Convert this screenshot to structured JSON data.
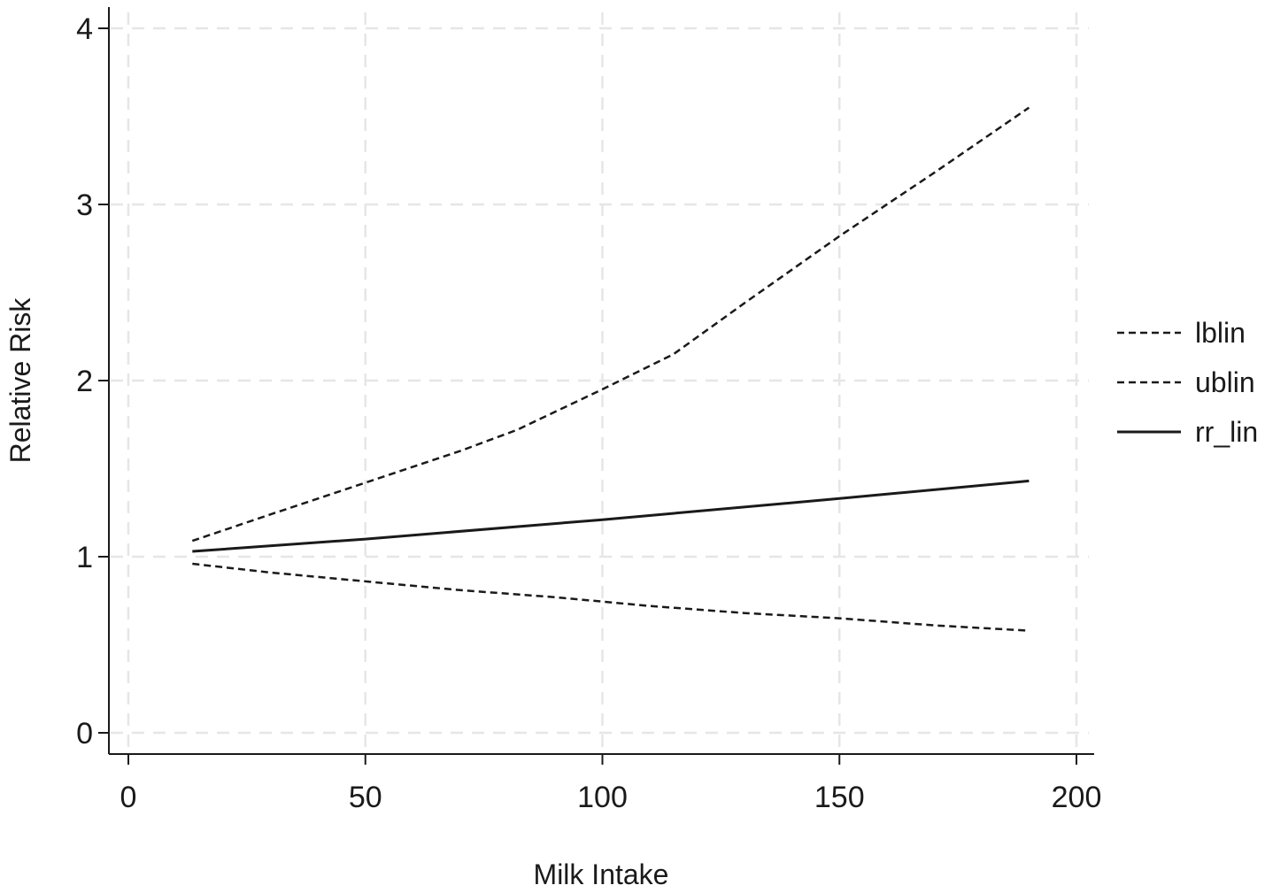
{
  "chart_data": {
    "type": "line",
    "title": "",
    "xlabel": "Milk Intake",
    "ylabel": "Relative Risk",
    "xlim": [
      0,
      200
    ],
    "ylim": [
      0,
      4
    ],
    "x_ticks": [
      0,
      50,
      100,
      150,
      200
    ],
    "y_ticks": [
      0,
      1,
      2,
      3,
      4
    ],
    "x_tick_labels": [
      "0",
      "50",
      "100",
      "150",
      "200"
    ],
    "y_tick_labels": [
      "0",
      "1",
      "2",
      "3",
      "4"
    ],
    "grid": true,
    "legend_position": "right",
    "series": [
      {
        "name": "lblin",
        "style": "dashed",
        "color": "#1a1a1a",
        "x": [
          13.5,
          30,
          50,
          70,
          90,
          110,
          130,
          150,
          170,
          190
        ],
        "y": [
          0.96,
          0.91,
          0.86,
          0.81,
          0.77,
          0.72,
          0.68,
          0.65,
          0.61,
          0.58
        ]
      },
      {
        "name": "ublin",
        "style": "dashed",
        "color": "#1a1a1a",
        "x": [
          13.5,
          30,
          50,
          70,
          82,
          100,
          115,
          130,
          150,
          170,
          190
        ],
        "y": [
          1.09,
          1.24,
          1.42,
          1.6,
          1.72,
          1.95,
          2.15,
          2.44,
          2.82,
          3.18,
          3.55
        ]
      },
      {
        "name": "rr_lin",
        "style": "solid",
        "color": "#1a1a1a",
        "x": [
          13.5,
          50,
          100,
          150,
          190
        ],
        "y": [
          1.03,
          1.1,
          1.21,
          1.33,
          1.43
        ]
      }
    ]
  }
}
